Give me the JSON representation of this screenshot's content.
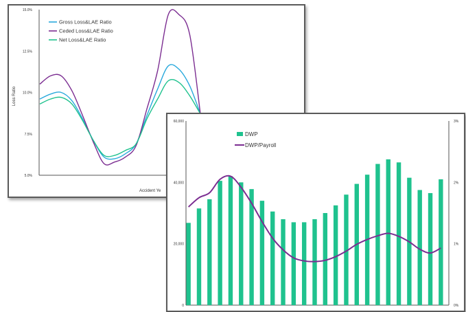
{
  "chart_data": [
    {
      "type": "line",
      "title": "",
      "ylabel": "Loss Ratio",
      "xlabel": "Accident Ye",
      "yticks": [
        "15.0%",
        "12.5%",
        "10.0%",
        "7.5%",
        "5.0%"
      ],
      "ylim": [
        5.0,
        15.0
      ],
      "legend_position": "top-left",
      "series": [
        {
          "name": "Gross Loss&LAE Ratio",
          "color": "#29a9dc",
          "values": [
            9.6,
            9.9,
            10.0,
            9.5,
            8.4,
            7.1,
            6.1,
            6.0,
            6.3,
            6.9,
            8.6,
            10.2,
            11.6,
            11.4,
            10.4,
            8.7
          ]
        },
        {
          "name": "Ceded Loss&LAE Ratio",
          "color": "#7b2d91",
          "values": [
            10.5,
            11.0,
            11.0,
            10.1,
            8.6,
            7.0,
            5.7,
            5.8,
            6.1,
            6.8,
            9.0,
            11.3,
            14.7,
            14.7,
            13.5,
            8.7
          ]
        },
        {
          "name": "Net Loss&LAE Ratio",
          "color": "#1fc28e",
          "values": [
            9.3,
            9.6,
            9.7,
            9.3,
            8.3,
            7.1,
            6.2,
            6.2,
            6.5,
            6.9,
            8.4,
            9.6,
            10.7,
            10.6,
            9.8,
            8.7
          ]
        }
      ]
    },
    {
      "type": "bar",
      "title": "",
      "yticks_left": [
        "60,000",
        "40,000",
        "20,000",
        "0"
      ],
      "yticks_right": [
        "3%",
        "2%",
        "1%",
        "0%"
      ],
      "ylim_left": [
        0,
        60000
      ],
      "ylim_right": [
        0,
        3
      ],
      "legend_position": "top-left",
      "series": [
        {
          "name": "DWP",
          "type": "bar",
          "color": "#1fc28e",
          "axis": "left",
          "values": [
            26800,
            31500,
            34500,
            40500,
            42000,
            40000,
            37800,
            34000,
            30500,
            28000,
            27000,
            27000,
            28000,
            30000,
            32500,
            36000,
            39500,
            42500,
            46000,
            47500,
            46500,
            41500,
            37500,
            36500,
            41000
          ]
        },
        {
          "name": "DWP/Payroll",
          "type": "line",
          "color": "#7b2d91",
          "axis": "right",
          "values": [
            1.6,
            1.75,
            1.83,
            2.05,
            2.1,
            1.92,
            1.66,
            1.36,
            1.09,
            0.9,
            0.77,
            0.72,
            0.71,
            0.73,
            0.79,
            0.88,
            0.99,
            1.07,
            1.13,
            1.17,
            1.12,
            1.03,
            0.91,
            0.85,
            0.93
          ]
        }
      ]
    }
  ]
}
